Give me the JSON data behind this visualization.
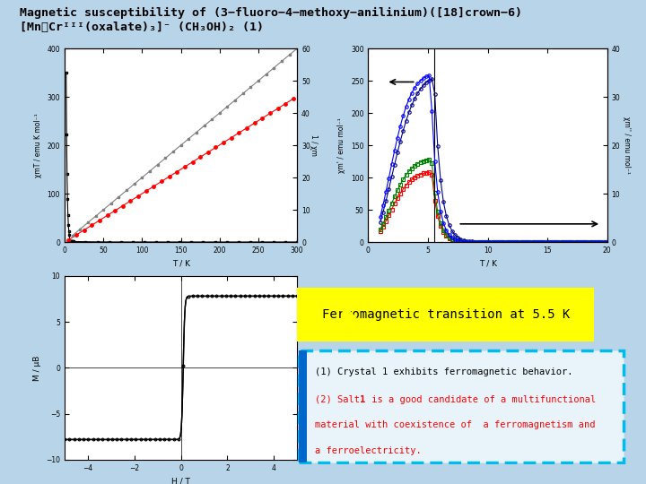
{
  "title_line1": "Magnetic susceptibility of (3−fluoro−4−methoxy−anilinium)([18]crown−6)",
  "title_line2": "[MnᴀCrᴵᴵᴵ(oxalate)₃]⁻ (CH₃OH)₂ (1)",
  "bg_color": "#b8d4e8",
  "plot1": {
    "xlabel": "T / K",
    "ylabel_left": "χmT / emu K mol⁻¹",
    "ylabel_right": "1 / χm",
    "xlim": [
      0,
      300
    ],
    "ylim_left": [
      0,
      400
    ],
    "ylim_right": [
      0,
      60
    ],
    "xticks": [
      0,
      50,
      100,
      150,
      200,
      250,
      300
    ],
    "yticks_left": [
      0,
      100,
      200,
      300,
      400
    ],
    "yticks_right": [
      0,
      10,
      20,
      30,
      40,
      50,
      60
    ]
  },
  "plot2": {
    "xlabel": "T / K",
    "ylabel_left": "χm' / emu mol⁻¹",
    "ylabel_right": "χm'' / emu mol⁻¹",
    "xlim": [
      0,
      20
    ],
    "ylim_left": [
      0,
      300
    ],
    "ylim_right": [
      0,
      40
    ],
    "xticks": [
      0,
      5,
      10,
      15,
      20
    ],
    "yticks_left": [
      0,
      50,
      100,
      150,
      200,
      250,
      300
    ],
    "yticks_right": [
      0,
      10,
      20,
      30,
      40
    ]
  },
  "plot3": {
    "xlabel": "H / T",
    "ylabel": "M / μB",
    "xlim": [
      -5,
      5
    ],
    "ylim": [
      -10,
      10
    ],
    "xticks": [
      -4,
      -2,
      0,
      2,
      4
    ],
    "yticks": [
      -10,
      -5,
      0,
      5,
      10
    ]
  },
  "yellow_text": "Ferromagnetic transition at 5.5 K",
  "box_line1": "(1) Crystal 1 exhibits ferromagnetic behavior.",
  "box_line2a": "(2) Salt ",
  "box_line2b": "1",
  "box_line2c": " is a good candidate of a multifunctional",
  "box_line3": "material with coexistence of  a ferromagnetism and",
  "box_line4": "a ferroelectricity."
}
